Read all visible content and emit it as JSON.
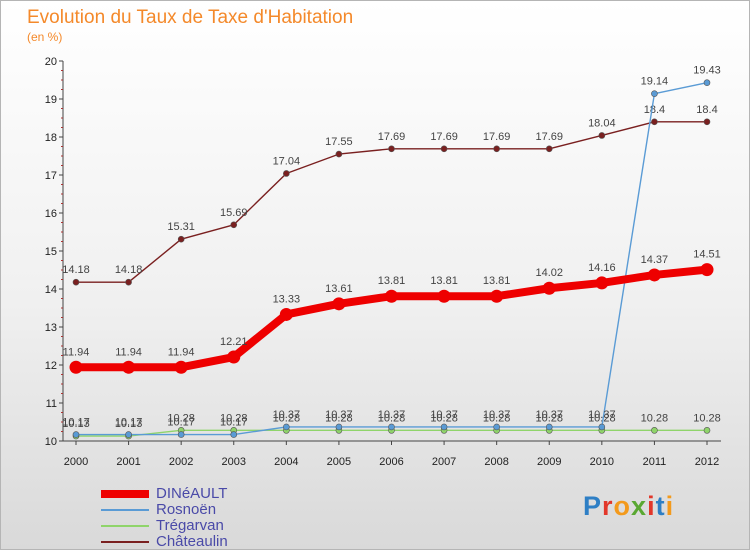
{
  "header": {
    "title": "Evolution du Taux de Taxe d'Habitation",
    "subtitle": "(en %)"
  },
  "brand": {
    "name": "Proxiti"
  },
  "chart_data": {
    "type": "line",
    "title": "Evolution du Taux de Taxe d'Habitation",
    "subtitle": "(en %)",
    "xlabel": "",
    "ylabel": "",
    "ylim": [
      10,
      20
    ],
    "yticks": [
      10,
      11,
      12,
      13,
      14,
      15,
      16,
      17,
      18,
      19,
      20
    ],
    "grid": false,
    "legend_position": "bottom-left",
    "x": [
      "2000",
      "2001",
      "2002",
      "2003",
      "2004",
      "2005",
      "2006",
      "2007",
      "2008",
      "2009",
      "2010",
      "2011",
      "2012"
    ],
    "series": [
      {
        "name": "Châteaulin",
        "color": "#7a2020",
        "values": [
          14.18,
          14.18,
          15.31,
          15.69,
          17.04,
          17.55,
          17.69,
          17.69,
          17.69,
          17.69,
          18.04,
          18.4,
          18.4
        ]
      },
      {
        "name": "Trégarvan",
        "color": "#8fd46a",
        "values": [
          10.13,
          10.13,
          10.28,
          10.28,
          10.28,
          10.28,
          10.28,
          10.28,
          10.28,
          10.28,
          10.28,
          10.28,
          10.28
        ]
      },
      {
        "name": "Rosnoën",
        "color": "#5a9bd5",
        "values": [
          10.17,
          10.17,
          10.17,
          10.17,
          10.37,
          10.37,
          10.37,
          10.37,
          10.37,
          10.37,
          10.37,
          19.14,
          19.43
        ]
      },
      {
        "name": "DINéAULT",
        "color": "#ee0000",
        "values": [
          11.94,
          11.94,
          11.94,
          12.21,
          13.33,
          13.61,
          13.81,
          13.81,
          13.81,
          14.02,
          14.16,
          14.37,
          14.51
        ]
      }
    ]
  },
  "legend": {
    "items": [
      {
        "label": "DINéAULT",
        "color": "#ee0000",
        "weight": "thick"
      },
      {
        "label": "Rosnoën",
        "color": "#5a9bd5",
        "weight": "thin"
      },
      {
        "label": "Trégarvan",
        "color": "#8fd46a",
        "weight": "thin"
      },
      {
        "label": "Châteaulin",
        "color": "#7a2020",
        "weight": "thin"
      }
    ]
  }
}
